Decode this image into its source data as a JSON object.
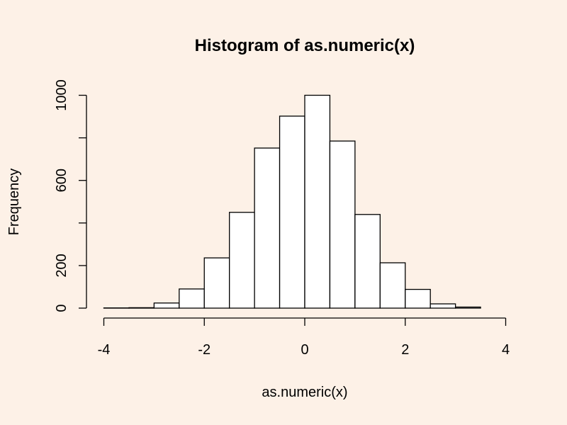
{
  "chart_data": {
    "type": "bar",
    "title": "Histogram of as.numeric(x)",
    "xlabel": "as.numeric(x)",
    "ylabel": "Frequency",
    "xlim": [
      -4,
      4
    ],
    "ylim": [
      0,
      1000
    ],
    "x_ticks": [
      -4,
      -2,
      0,
      2,
      4
    ],
    "y_ticks": [
      0,
      200,
      600,
      1000
    ],
    "y_tick_labels": [
      "0",
      "200",
      "600",
      "1000"
    ],
    "bins": [
      {
        "from": -4.0,
        "to": -3.5,
        "value": 1
      },
      {
        "from": -3.5,
        "to": -3.0,
        "value": 2
      },
      {
        "from": -3.0,
        "to": -2.5,
        "value": 24
      },
      {
        "from": -2.5,
        "to": -2.0,
        "value": 90
      },
      {
        "from": -2.0,
        "to": -1.5,
        "value": 236
      },
      {
        "from": -1.5,
        "to": -1.0,
        "value": 450
      },
      {
        "from": -1.0,
        "to": -0.5,
        "value": 752
      },
      {
        "from": -0.5,
        "to": 0.0,
        "value": 902
      },
      {
        "from": 0.0,
        "to": 0.5,
        "value": 1000
      },
      {
        "from": 0.5,
        "to": 1.0,
        "value": 785
      },
      {
        "from": 1.0,
        "to": 1.5,
        "value": 440
      },
      {
        "from": 1.5,
        "to": 2.0,
        "value": 213
      },
      {
        "from": 2.0,
        "to": 2.5,
        "value": 88
      },
      {
        "from": 2.5,
        "to": 3.0,
        "value": 20
      },
      {
        "from": 3.0,
        "to": 3.5,
        "value": 5
      }
    ],
    "colors": {
      "background": "#FDF1E7",
      "bar_fill": "#FFFFFF",
      "bar_stroke": "#000000"
    }
  }
}
